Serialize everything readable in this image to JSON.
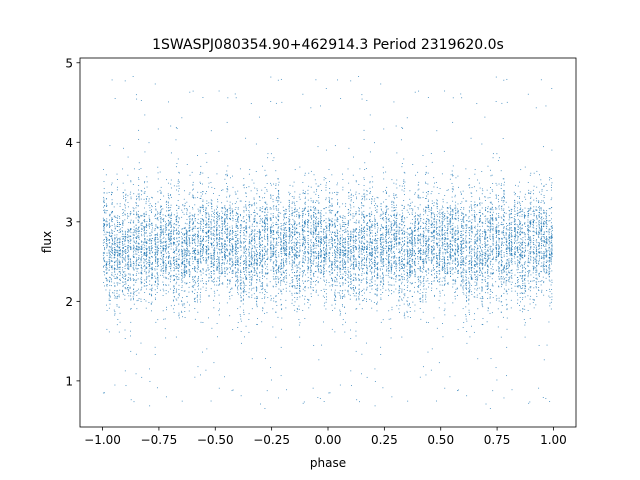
{
  "chart_data": {
    "type": "scatter",
    "title": "1SWASPJ080354.90+462914.3 Period 2319620.0s",
    "xlabel": "phase",
    "ylabel": "flux",
    "xlim": [
      -1.1,
      1.1
    ],
    "ylim": [
      0.42,
      5.06
    ],
    "x_ticks": [
      -1.0,
      -0.75,
      -0.5,
      -0.25,
      0.0,
      0.25,
      0.5,
      0.75,
      1.0
    ],
    "x_tick_labels": [
      "−1.00",
      "−0.75",
      "−0.50",
      "−0.25",
      "0.00",
      "0.25",
      "0.50",
      "0.75",
      "1.00"
    ],
    "y_ticks": [
      1,
      2,
      3,
      4,
      5
    ],
    "y_tick_labels": [
      "1",
      "2",
      "3",
      "4",
      "5"
    ],
    "grid": false,
    "legend": "none",
    "marker_color": "#1f77b4",
    "description_of_series": {
      "phase_range": [
        -1.0,
        1.0
      ],
      "flux_median": 2.7,
      "flux_core_range": [
        1.8,
        3.6
      ],
      "flux_outlier_range": [
        0.6,
        4.85
      ],
      "point_count_approx": 12000,
      "pattern": "phase-folded light curve repeated twice (phase -1 to 0 and 0 to 1), points arranged in dense vertical stripes"
    }
  }
}
